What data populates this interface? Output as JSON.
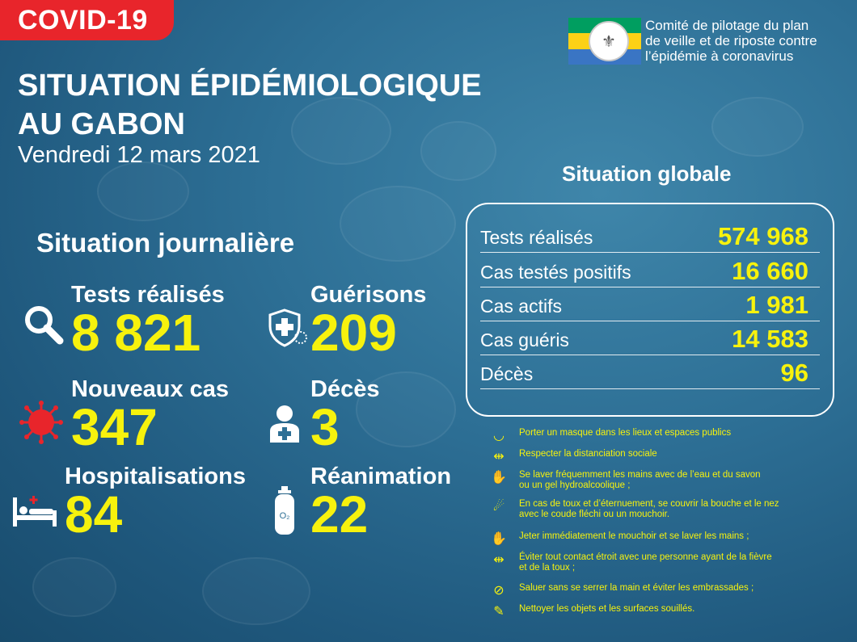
{
  "header": {
    "badge": "COVID-19",
    "title_line1": "SITUATION ÉPIDÉMIOLOGIQUE",
    "title_line2": "AU GABON",
    "date": "Vendredi 12 mars 2021"
  },
  "organization": {
    "line1": "Comité de pilotage du plan",
    "line2": "de veille et de riposte contre",
    "line3": "l’épidémie à coronavirus",
    "flag_colors": [
      "#009e60",
      "#fcd116",
      "#3a75c4"
    ]
  },
  "daily": {
    "heading": "Situation journalière",
    "tests": {
      "label": "Tests réalisés",
      "value": "8 821",
      "icon": "magnifier-icon"
    },
    "recoveries": {
      "label": "Guérisons",
      "value": "209",
      "icon": "shield-cross-icon"
    },
    "new_cases": {
      "label": "Nouveaux cas",
      "value": "347",
      "icon": "virus-icon"
    },
    "deaths": {
      "label": "Décès",
      "value": "3",
      "icon": "person-cross-icon"
    },
    "hospitalizations": {
      "label": "Hospitalisations",
      "value": "84",
      "icon": "hospital-bed-icon"
    },
    "icu": {
      "label": "Réanimation",
      "value": "22",
      "icon": "oxygen-tank-icon"
    }
  },
  "global": {
    "heading": "Situation globale",
    "rows": [
      {
        "label": "Tests réalisés",
        "value": "574 968"
      },
      {
        "label": "Cas testés positifs",
        "value": "16 660"
      },
      {
        "label": "Cas actifs",
        "value": "1 981"
      },
      {
        "label": "Cas guéris",
        "value": "14 583"
      },
      {
        "label": "Décès",
        "value": "96"
      }
    ]
  },
  "tips": [
    {
      "icon": "mask-icon",
      "text": "Porter un masque dans les lieux et espaces publics"
    },
    {
      "icon": "distance-icon",
      "text": "Respecter la distanciation sociale"
    },
    {
      "icon": "handwash-icon",
      "text": "Se laver fréquemment les mains avec de l’eau et du savon\n ou un gel hydroalcoolique ;"
    },
    {
      "icon": "sneeze-icon",
      "text": "En cas de toux et d’éternuement, se couvrir la bouche et le nez\n avec le coude fléchi ou un mouchoir."
    },
    {
      "icon": "tissue-icon",
      "text": "Jeter immédiatement le mouchoir et se laver les mains ;"
    },
    {
      "icon": "avoid-contact-icon",
      "text": "Éviter tout contact étroit avec une personne ayant de la fièvre\n et de la toux ;"
    },
    {
      "icon": "no-handshake-icon",
      "text": "Saluer sans se serrer la main et éviter les embrassades ;"
    },
    {
      "icon": "cleaning-icon",
      "text": "Nettoyer les objets et les surfaces souillés."
    }
  ],
  "colors": {
    "accent": "#f7f20d",
    "badge": "#e8252b",
    "virus": "#e8252b"
  }
}
